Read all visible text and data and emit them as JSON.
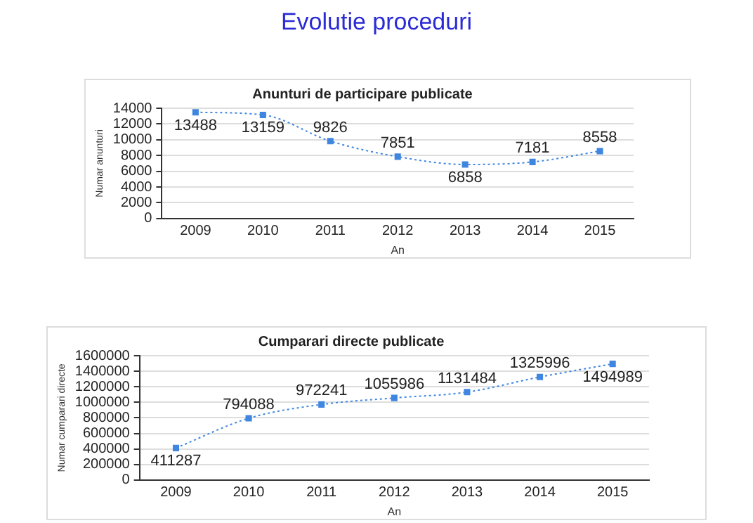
{
  "chart_data": [
    {
      "type": "line",
      "title": "Anunturi de participare publicate",
      "annotations": [
        "Evolutie proceduri"
      ],
      "xlabel": "An",
      "ylabel": "Numar anunturi",
      "categories": [
        "2009",
        "2010",
        "2011",
        "2012",
        "2013",
        "2014",
        "2015"
      ],
      "series": [
        {
          "color": "#3f86e0",
          "values": [
            13488,
            13159,
            9826,
            7851,
            6858,
            7181,
            8558
          ]
        }
      ],
      "ylim": [
        0,
        14000
      ],
      "yticks": [
        0,
        2000,
        4000,
        6000,
        8000,
        10000,
        12000,
        14000
      ],
      "grid": "y",
      "legend": false,
      "data_labels": true,
      "marker": "square",
      "line_style": "dotted"
    },
    {
      "type": "line",
      "title": "Cumparari directe publicate",
      "xlabel": "An",
      "ylabel": "Numar cumparari directe",
      "categories": [
        "2009",
        "2010",
        "2011",
        "2012",
        "2013",
        "2014",
        "2015"
      ],
      "series": [
        {
          "color": "#3f86e0",
          "values": [
            411287,
            794088,
            972241,
            1055986,
            1131484,
            1325996,
            1494989
          ]
        }
      ],
      "ylim": [
        0,
        1600000
      ],
      "yticks": [
        0,
        200000,
        400000,
        600000,
        800000,
        1000000,
        1200000,
        1400000,
        1600000
      ],
      "grid": "y",
      "legend": false,
      "data_labels": true,
      "marker": "square",
      "line_style": "dotted"
    }
  ]
}
